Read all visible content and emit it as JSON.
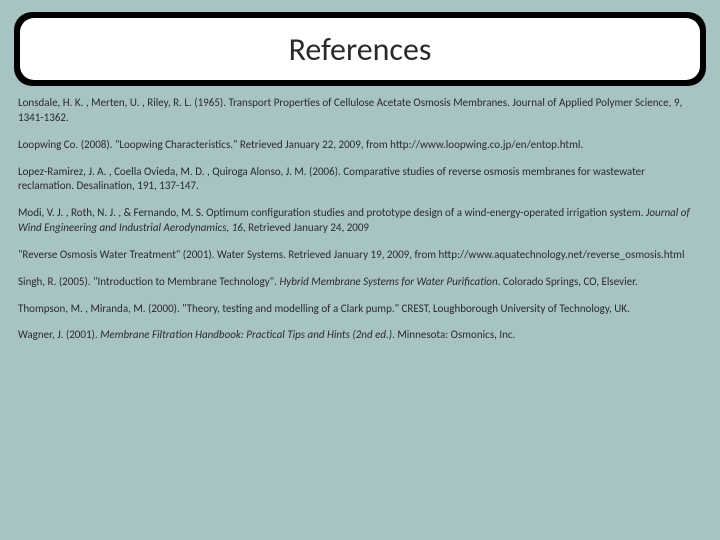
{
  "title": "References",
  "colors": {
    "background": "#a8c3c3",
    "title_border": "#000000",
    "title_fill": "#ffffff",
    "text": "#2a2a2a"
  },
  "typography": {
    "title_fontsize": 32,
    "body_fontsize": 11
  },
  "references": [
    {
      "text_a": "Lonsdale, H. K. , Merten, U. , Riley, R. L. (1965). Transport Properties of Cellulose Acetate Osmosis Membranes. Journal of Applied Polymer Science, 9, 1341-1362."
    },
    {
      "text_a": "Loopwing Co. (2008). \"Loopwing Characteristics.\"   Retrieved January 22, 2009, from http://www.loopwing.co.jp/en/entop.html."
    },
    {
      "text_a": "Lopez-Ramirez, J. A. , Coella Ovieda, M. D. , Quiroga Alonso, J. M. (2006). Comparative studies of reverse osmosis membranes for wastewater reclamation. Desalination, 191, 137-147."
    },
    {
      "text_a": "Modi, V. J. , Roth, N. J. , & Fernando, M. S. Optimum configuration studies and prototype design of a wind-energy-operated irrigation system. ",
      "italic": "Journal of Wind Engineering and Industrial Aerodynamics, 16",
      "text_b": ", Retrieved January 24, 2009"
    },
    {
      "text_a": "\"Reverse Osmosis Water Treatment\" (2001).   Water Systems.  Retrieved January 19, 2009, from http://www.aquatechnology.net/reverse_osmosis.html"
    },
    {
      "text_a": "Singh, R. (2005). \"Introduction to Membrane Technology\". ",
      "italic": "Hybrid Membrane Systems for Water Purification",
      "text_b": ". Colorado Springs, CO, Elsevier."
    },
    {
      "text_a": "Thompson, M. , Miranda, M. (2000). \"Theory, testing and modelling of a Clark pump.\" CREST, Loughborough University of Technology, UK."
    },
    {
      "text_a": "Wagner, J. (2001). ",
      "italic": "Membrane Filtration Handbook: Practical Tips and Hints (2nd ed.)",
      "text_b": ". Minnesota: Osmonics, Inc."
    }
  ]
}
